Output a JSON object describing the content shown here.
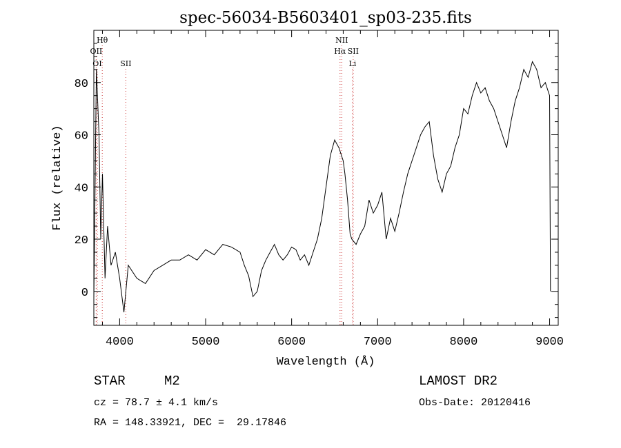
{
  "chart_data": {
    "type": "line",
    "title": "spec-56034-B5603401_sp03-235.fits",
    "xlabel": "Wavelength (Å)",
    "ylabel": "Flux (relative)",
    "xlim": [
      3700,
      9100
    ],
    "ylim": [
      -13,
      100
    ],
    "xticks": [
      4000,
      5000,
      6000,
      7000,
      8000,
      9000
    ],
    "yticks": [
      0,
      20,
      40,
      60,
      80
    ],
    "grid": false,
    "line_color": "#000000",
    "marker_color": "#cc3333",
    "lines": [
      {
        "label": "OII",
        "wavelength": 3727,
        "row": 3
      },
      {
        "label": "Hθ",
        "wavelength": 3798,
        "row": 2
      },
      {
        "label": "OI",
        "wavelength": 3740,
        "row": 4
      },
      {
        "label": "SII",
        "wavelength": 4072,
        "row": 4
      },
      {
        "label": "NII",
        "wavelength": 6583,
        "row": 2
      },
      {
        "label": "Hα",
        "wavelength": 6563,
        "row": 3
      },
      {
        "label": "SII",
        "wavelength": 6716,
        "row": 3
      },
      {
        "label": "Li",
        "wavelength": 6708,
        "row": 4
      }
    ],
    "series": [
      {
        "x": [
          3700,
          3730,
          3760,
          3780,
          3800,
          3830,
          3860,
          3900,
          3950,
          4000,
          4050,
          4100,
          4200,
          4300,
          4400,
          4500,
          4600,
          4700,
          4800,
          4900,
          5000,
          5100,
          5200,
          5300,
          5400,
          5450,
          5500,
          5550,
          5600,
          5650,
          5700,
          5750,
          5800,
          5850,
          5900,
          5950,
          6000,
          6050,
          6100,
          6150,
          6200,
          6250,
          6300,
          6350,
          6400,
          6450,
          6500,
          6550,
          6600,
          6620,
          6650,
          6680,
          6700,
          6750,
          6800,
          6850,
          6900,
          6950,
          7000,
          7050,
          7100,
          7150,
          7200,
          7250,
          7300,
          7350,
          7400,
          7450,
          7500,
          7550,
          7600,
          7650,
          7700,
          7750,
          7800,
          7850,
          7900,
          7950,
          8000,
          8050,
          8100,
          8150,
          8200,
          8250,
          8300,
          8350,
          8400,
          8450,
          8500,
          8550,
          8600,
          8650,
          8700,
          8750,
          8800,
          8850,
          8900,
          8950,
          9000,
          9010
        ],
        "y": [
          -3,
          85,
          60,
          20,
          45,
          5,
          25,
          10,
          15,
          5,
          -8,
          10,
          5,
          3,
          8,
          10,
          12,
          12,
          14,
          12,
          16,
          14,
          18,
          17,
          15,
          10,
          6,
          -2,
          0,
          8,
          12,
          15,
          18,
          14,
          12,
          14,
          17,
          16,
          12,
          14,
          10,
          15,
          20,
          28,
          40,
          52,
          58,
          55,
          50,
          45,
          35,
          22,
          20,
          18,
          22,
          25,
          35,
          30,
          33,
          38,
          20,
          28,
          23,
          30,
          38,
          45,
          50,
          55,
          60,
          63,
          65,
          52,
          43,
          38,
          45,
          48,
          55,
          60,
          70,
          68,
          75,
          80,
          76,
          78,
          73,
          70,
          65,
          60,
          55,
          65,
          73,
          78,
          85,
          82,
          88,
          85,
          78,
          80,
          75,
          0
        ]
      }
    ]
  },
  "info": {
    "class_label": "STAR",
    "subclass": "M2",
    "survey": "LAMOST DR2",
    "cz": "cz = 78.7 ± 4.1 km/s",
    "obs_date": "Obs-Date: 20120416",
    "radec": "RA = 148.33921, DEC =  29.17846"
  }
}
